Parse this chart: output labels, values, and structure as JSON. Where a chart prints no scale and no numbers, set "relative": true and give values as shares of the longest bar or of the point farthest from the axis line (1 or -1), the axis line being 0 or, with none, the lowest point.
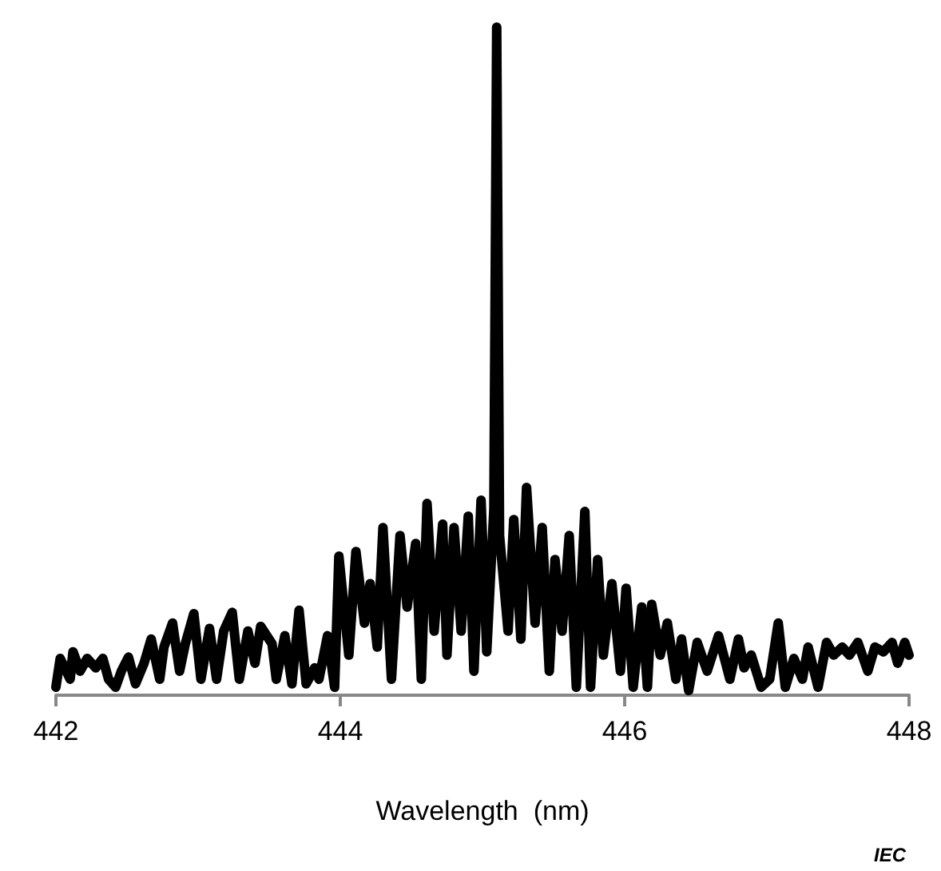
{
  "chart_data": {
    "type": "line",
    "xlabel": "Wavelength  (nm)",
    "annotations": [
      "IEC"
    ],
    "relative": true,
    "color": "#000000",
    "marker": "none",
    "line_style": "solid",
    "grid": false,
    "tick_labels": "x",
    "xlim": [
      442,
      448
    ],
    "xticks": [
      442,
      444,
      446,
      448
    ],
    "x": [
      442.0,
      442.03,
      442.1,
      442.12,
      442.17,
      442.22,
      442.28,
      442.33,
      442.37,
      442.42,
      442.46,
      442.51,
      442.56,
      442.62,
      442.67,
      442.73,
      442.76,
      442.82,
      442.87,
      442.91,
      442.97,
      443.02,
      443.08,
      443.13,
      443.18,
      443.24,
      443.29,
      443.35,
      443.4,
      443.44,
      443.52,
      443.55,
      443.61,
      443.66,
      443.71,
      443.76,
      443.82,
      443.85,
      443.91,
      443.96,
      443.99,
      444.06,
      444.11,
      444.17,
      444.21,
      444.26,
      444.3,
      444.36,
      444.42,
      444.47,
      444.53,
      444.57,
      444.61,
      444.66,
      444.72,
      444.75,
      444.8,
      444.85,
      444.9,
      444.94,
      444.99,
      445.03,
      445.08,
      445.1,
      445.12,
      445.18,
      445.22,
      445.27,
      445.31,
      445.37,
      445.42,
      445.47,
      445.51,
      445.56,
      445.61,
      445.66,
      445.72,
      445.76,
      445.81,
      445.85,
      445.91,
      445.97,
      446.01,
      446.06,
      446.12,
      446.16,
      446.19,
      446.25,
      446.3,
      446.36,
      446.4,
      446.45,
      446.51,
      446.58,
      446.66,
      446.74,
      446.8,
      446.84,
      446.89,
      446.96,
      447.02,
      447.08,
      447.13,
      447.19,
      447.25,
      447.29,
      447.36,
      447.42,
      447.47,
      447.53,
      447.58,
      447.64,
      447.71,
      447.76,
      447.82,
      447.88,
      447.92,
      447.97,
      448.0
    ],
    "values": [
      0.012,
      0.055,
      0.024,
      0.065,
      0.036,
      0.055,
      0.041,
      0.055,
      0.024,
      0.012,
      0.036,
      0.057,
      0.017,
      0.048,
      0.084,
      0.024,
      0.072,
      0.108,
      0.036,
      0.077,
      0.122,
      0.024,
      0.1,
      0.024,
      0.096,
      0.124,
      0.024,
      0.096,
      0.048,
      0.103,
      0.077,
      0.024,
      0.089,
      0.017,
      0.127,
      0.017,
      0.041,
      0.024,
      0.089,
      0.012,
      0.208,
      0.06,
      0.215,
      0.108,
      0.167,
      0.072,
      0.251,
      0.024,
      0.239,
      0.132,
      0.227,
      0.024,
      0.287,
      0.096,
      0.256,
      0.06,
      0.251,
      0.096,
      0.268,
      0.036,
      0.292,
      0.065,
      0.278,
      1,
      0.239,
      0.096,
      0.263,
      0.084,
      0.311,
      0.108,
      0.251,
      0.036,
      0.203,
      0.096,
      0.239,
      0.012,
      0.275,
      0.012,
      0.203,
      0.06,
      0.167,
      0.036,
      0.16,
      0.012,
      0.132,
      0.012,
      0.136,
      0.06,
      0.108,
      0.024,
      0.084,
      0.007,
      0.079,
      0.036,
      0.089,
      0.024,
      0.084,
      0.041,
      0.06,
      0.012,
      0.024,
      0.108,
      0.012,
      0.055,
      0.024,
      0.072,
      0.012,
      0.079,
      0.06,
      0.072,
      0.06,
      0.079,
      0.036,
      0.072,
      0.065,
      0.079,
      0.048,
      0.079,
      0.06
    ]
  }
}
